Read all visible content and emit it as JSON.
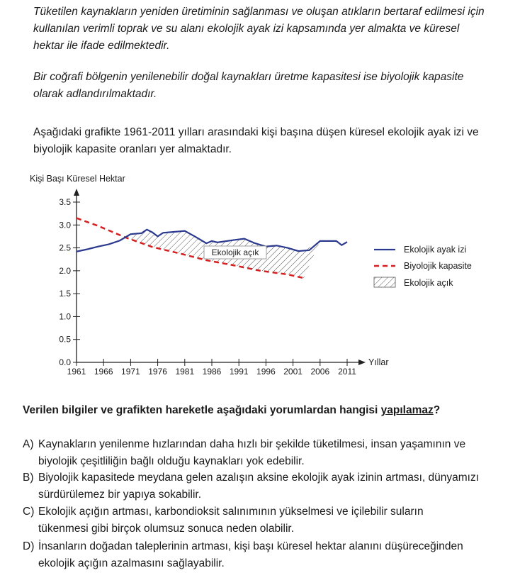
{
  "intro": {
    "p1_line1": "Tüketilen kaynakların yeniden üretiminin sağlanması ve oluşan atıkların bertaraf edilmesi için",
    "p1_line2": "kullanılan verimli toprak ve su alanı ekolojik ayak izi kapsamında yer almakta ve küresel",
    "p1_line3": "hektar ile ifade edilmektedir.",
    "p2_line1": "Bir coğrafi bölgenin yenilenebilir doğal kaynakları üretme kapasitesi ise biyolojik kapasite",
    "p2_line2": "olarak adlandırılmaktadır.",
    "p3_line1": "Aşağıdaki grafikte 1961-2011 yılları arasındaki kişi başına düşen küresel ekolojik ayak izi ve",
    "p3_line2": "biyolojik kapasite oranları yer almaktadır."
  },
  "chart_data": {
    "type": "line",
    "ylabel": "Kişi Başı Küresel Hektar",
    "xlabel": "Yıllar",
    "ylim": [
      0,
      3.5
    ],
    "yticks": [
      "0.0",
      "0.5",
      "1.0",
      "1.5",
      "2.0",
      "2.5",
      "3.0",
      "3.5"
    ],
    "yticks_values": [
      0,
      0.5,
      1.0,
      1.5,
      2.0,
      2.5,
      3.0,
      3.5
    ],
    "xticks": [
      "1961",
      "1966",
      "1971",
      "1976",
      "1981",
      "1986",
      "1991",
      "1996",
      "2001",
      "2006",
      "2011"
    ],
    "xticks_values": [
      1961,
      1966,
      1971,
      1976,
      1981,
      1986,
      1991,
      1996,
      2001,
      2006,
      2011
    ],
    "xlim": [
      1961,
      2011
    ],
    "annotation": "Ekolojik açık",
    "legend": [
      "Ekolojik ayak izi",
      "Biyolojik kapasite",
      "Ekolojik açık"
    ],
    "legend_placement": "right",
    "colors": {
      "footprint": "#2b3a8f",
      "biocapacity": "#d42020",
      "hatch": "#555555"
    },
    "series": [
      {
        "name": "Ekolojik ayak izi",
        "x": [
          1961,
          1963,
          1965,
          1967,
          1969,
          1971,
          1973,
          1974,
          1975,
          1976,
          1977,
          1979,
          1981,
          1983,
          1985,
          1986,
          1987,
          1990,
          1992,
          1994,
          1996,
          1998,
          2000,
          2002,
          2004,
          2006,
          2008,
          2009,
          2010,
          2011
        ],
        "values": [
          2.42,
          2.47,
          2.53,
          2.58,
          2.66,
          2.8,
          2.82,
          2.9,
          2.84,
          2.75,
          2.83,
          2.85,
          2.87,
          2.74,
          2.6,
          2.65,
          2.62,
          2.67,
          2.7,
          2.6,
          2.53,
          2.55,
          2.5,
          2.43,
          2.45,
          2.65,
          2.65,
          2.65,
          2.56,
          2.63
        ]
      },
      {
        "name": "Biyolojik kapasite",
        "x": [
          1961,
          1965,
          1970,
          1975,
          1980,
          1985,
          1990,
          1995,
          2000,
          2003
        ],
        "values": [
          3.15,
          2.98,
          2.73,
          2.52,
          2.38,
          2.23,
          2.12,
          2.0,
          1.92,
          1.84
        ]
      }
    ]
  },
  "question": {
    "text": "Verilen bilgiler ve grafikten hareketle aşağıdaki yorumlardan hangisi ",
    "emph": "yapılamaz",
    "end": "?"
  },
  "options": [
    {
      "letter": "A)",
      "line1": "Kaynakların yenilenme hızlarından daha hızlı bir şekilde tüketilmesi, insan yaşamının ve",
      "line2": "biyolojik çeşitliliğin bağlı olduğu kaynakları yok edebilir."
    },
    {
      "letter": "B)",
      "line1": "Biyolojik kapasitede meydana gelen azalışın aksine ekolojik ayak izinin artması, dünyamızı",
      "line2": "sürdürülemez bir yapıya sokabilir."
    },
    {
      "letter": "C)",
      "line1": "Ekolojik açığın artması, karbondioksit salınımının yükselmesi ve içilebilir suların",
      "line2": "tükenmesi gibi birçok olumsuz sonuca neden olabilir."
    },
    {
      "letter": "D)",
      "line1": "İnsanların doğadan taleplerinin artması, kişi başı küresel hektar alanını düşüreceğinden",
      "line2": "ekolojik açığın azalmasını sağlayabilir."
    }
  ]
}
